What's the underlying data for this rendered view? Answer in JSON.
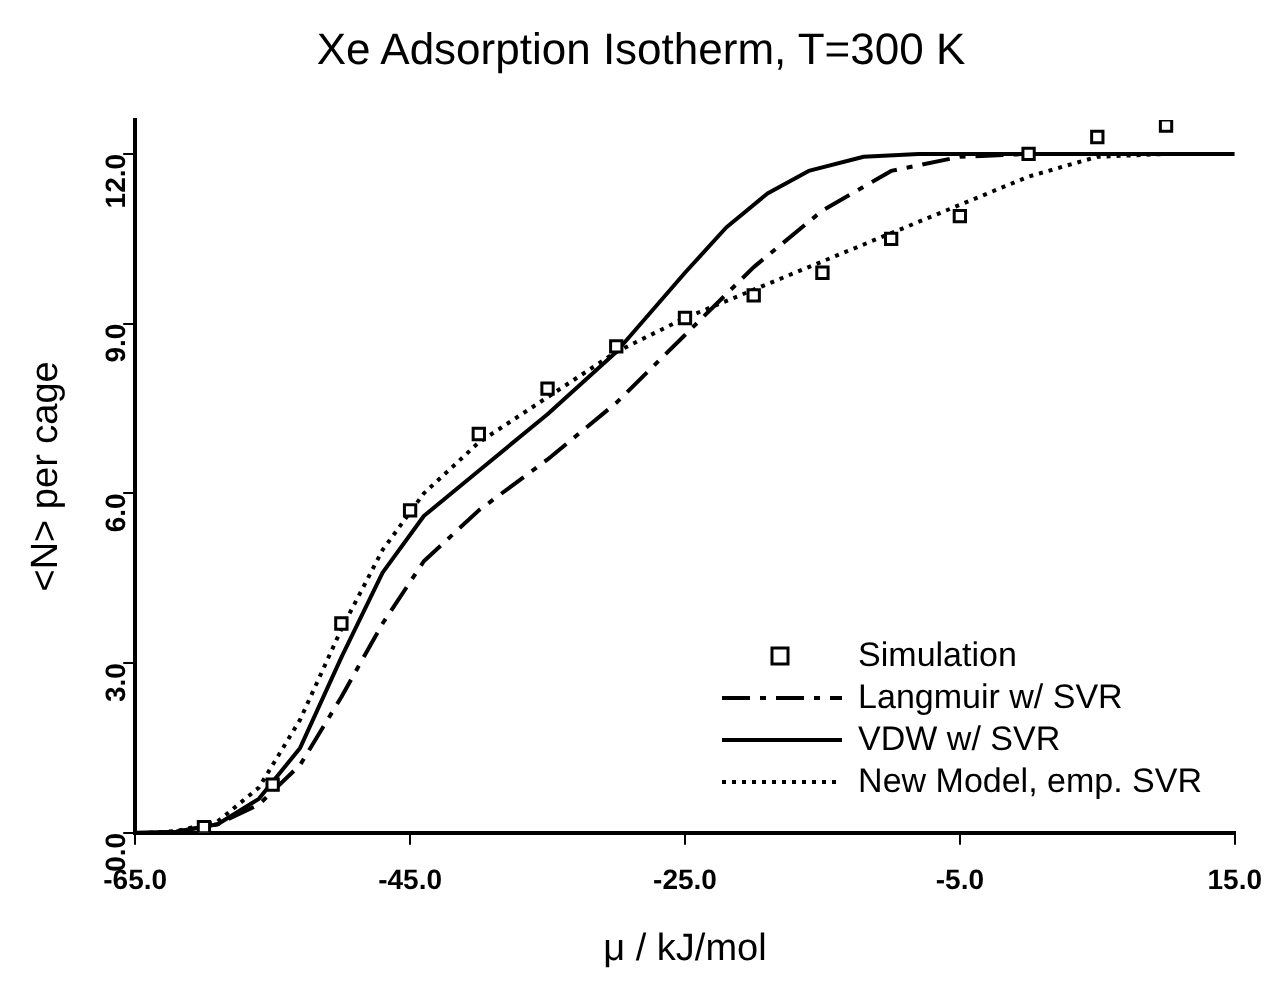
{
  "chart_data": {
    "type": "line",
    "title": "Xe Adsorption Isotherm, T=300 K",
    "xlabel": "μ / kJ/mol",
    "ylabel": "<N> per cage",
    "xlim": [
      -65,
      15
    ],
    "xticks": [
      {
        "value": -65,
        "label": "-65.0"
      },
      {
        "value": -45,
        "label": "-45.0"
      },
      {
        "value": -25,
        "label": "-25.0"
      },
      {
        "value": -5,
        "label": "-5.0"
      },
      {
        "value": 15,
        "label": "15.0"
      }
    ],
    "ylim": [
      0,
      12.6
    ],
    "yticks": [
      {
        "value": 0,
        "label": "0.0"
      },
      {
        "value": 3,
        "label": "3.0"
      },
      {
        "value": 6,
        "label": "6.0"
      },
      {
        "value": 9,
        "label": "9.0"
      },
      {
        "value": 12,
        "label": "12.0"
      }
    ],
    "grid": false,
    "legend": "bottom right",
    "series": [
      {
        "name": "Simulation",
        "type": "scatter",
        "marker": "square",
        "color": "#000000",
        "x": [
          -60,
          -55,
          -50,
          -45,
          -40,
          -35,
          -30,
          -25,
          -20,
          -15,
          -10,
          -5,
          0,
          5,
          10
        ],
        "values": [
          0.1,
          0.85,
          3.7,
          5.7,
          7.05,
          7.85,
          8.6,
          9.1,
          9.5,
          9.9,
          10.5,
          10.9,
          12.0,
          12.3,
          12.5
        ]
      },
      {
        "name": "Langmuir w/ SVR",
        "type": "line",
        "line_style": "dashed",
        "marker": "none",
        "color": "#000000",
        "x": [
          -62,
          -59,
          -56,
          -53,
          -50,
          -47,
          -44,
          -40,
          -35,
          -30,
          -25,
          -20,
          -15,
          -10,
          -5,
          0,
          14
        ],
        "values": [
          0.02,
          0.15,
          0.5,
          1.2,
          2.4,
          3.7,
          4.8,
          5.7,
          6.6,
          7.6,
          8.8,
          10.0,
          11.0,
          11.7,
          11.95,
          12,
          12
        ]
      },
      {
        "name": "VDW w/ SVR",
        "type": "line",
        "line_style": "solid",
        "marker": "none",
        "color": "#000000",
        "x": [
          -65,
          -62,
          -59,
          -56,
          -53,
          -50,
          -47,
          -44,
          -40,
          -35,
          -30,
          -25,
          -22,
          -19,
          -16,
          -12,
          -8,
          15
        ],
        "values": [
          0,
          0.02,
          0.15,
          0.6,
          1.5,
          3.1,
          4.6,
          5.6,
          6.4,
          7.4,
          8.5,
          9.9,
          10.7,
          11.3,
          11.7,
          11.95,
          12,
          12
        ]
      },
      {
        "name": "New Model, emp. SVR",
        "type": "line",
        "line_style": "dotted",
        "marker": "none",
        "color": "#000000",
        "x": [
          -64,
          -62,
          -59,
          -56,
          -53,
          -50,
          -47,
          -44,
          -40,
          -35,
          -30,
          -25,
          -20,
          -15,
          -10,
          -5,
          0,
          5,
          10,
          15
        ],
        "values": [
          0,
          0.03,
          0.2,
          0.8,
          2.0,
          3.6,
          5.0,
          6.0,
          6.9,
          7.7,
          8.5,
          9.1,
          9.6,
          10.1,
          10.6,
          11.1,
          11.6,
          11.95,
          12,
          12
        ]
      }
    ]
  }
}
